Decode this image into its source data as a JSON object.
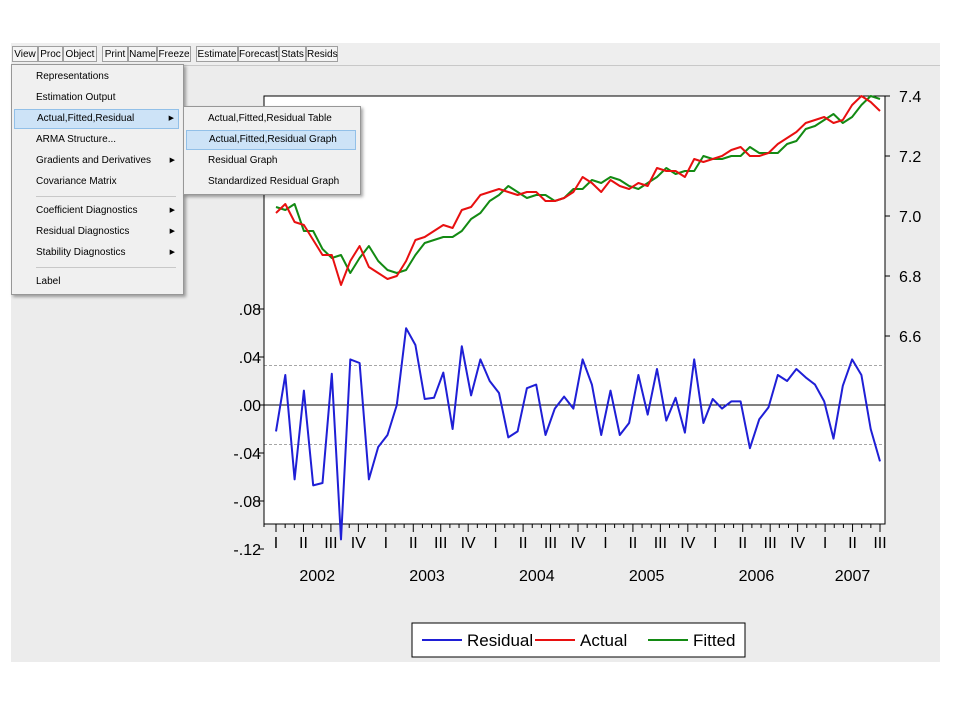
{
  "toolbar": {
    "buttons": [
      "View",
      "Proc",
      "Object",
      "Print",
      "Name",
      "Freeze",
      "Estimate",
      "Forecast",
      "Stats",
      "Resids"
    ]
  },
  "view_menu": {
    "items": [
      "Representations",
      "Estimation Output",
      "Actual,Fitted,Residual",
      "ARMA Structure...",
      "Gradients and Derivatives",
      "Covariance Matrix",
      "Coefficient Diagnostics",
      "Residual Diagnostics",
      "Stability Diagnostics",
      "Label"
    ],
    "submenu_arrow": "▶"
  },
  "submenu": {
    "items": [
      "Actual,Fitted,Residual Table",
      "Actual,Fitted,Residual Graph",
      "Residual Graph",
      "Standardized Residual Graph"
    ],
    "highlighted": "Actual,Fitted,Residual Graph"
  },
  "colors": {
    "residual": "#1f1fd6",
    "actual": "#e81010",
    "fitted": "#138a13",
    "menu_highlight": "#cde3f7"
  },
  "chart_data": {
    "type": "line",
    "x_quarter_labels": [
      "I",
      "II",
      "III",
      "IV",
      "I",
      "II",
      "III",
      "IV",
      "I",
      "II",
      "III",
      "IV",
      "I",
      "II",
      "III",
      "IV",
      "I",
      "II",
      "III",
      "IV",
      "I",
      "II",
      "III"
    ],
    "x_year_labels": [
      "2002",
      "2003",
      "2004",
      "2005",
      "2006",
      "2007"
    ],
    "left_axis": {
      "ticks": [
        ".08",
        ".04",
        ".00",
        "-.04",
        "-.08",
        "-.12"
      ],
      "ylim": [
        -0.12,
        0.08
      ]
    },
    "right_axis": {
      "ticks": [
        "7.4",
        "7.2",
        "7.0",
        "6.8",
        "6.6"
      ],
      "ylim": [
        6.6,
        7.4
      ]
    },
    "reference_lines": [
      0.033,
      0.0,
      -0.033
    ],
    "series": [
      {
        "name": "Residual",
        "axis": "left",
        "values": [
          -0.022,
          0.025,
          -0.062,
          0.012,
          -0.067,
          -0.065,
          0.026,
          -0.112,
          0.038,
          0.035,
          -0.062,
          -0.035,
          -0.025,
          0.0,
          0.064,
          0.05,
          0.005,
          0.006,
          0.027,
          -0.02,
          0.049,
          0.008,
          0.038,
          0.02,
          0.01,
          -0.027,
          -0.022,
          0.014,
          0.017,
          -0.025,
          -0.003,
          0.007,
          -0.003,
          0.038,
          0.017,
          -0.025,
          0.012,
          -0.025,
          -0.015,
          0.025,
          -0.008,
          0.03,
          -0.013,
          0.006,
          -0.023,
          0.038,
          -0.015,
          0.005,
          -0.003,
          0.003,
          0.003,
          -0.036,
          -0.012,
          -0.002,
          0.025,
          0.02,
          0.03,
          0.023,
          0.017,
          0.003,
          -0.028,
          0.016,
          0.038,
          0.025,
          -0.02,
          -0.047
        ]
      },
      {
        "name": "Actual",
        "axis": "right",
        "values": [
          7.01,
          7.04,
          6.98,
          6.97,
          6.92,
          6.87,
          6.87,
          6.77,
          6.85,
          6.9,
          6.83,
          6.81,
          6.79,
          6.8,
          6.85,
          6.92,
          6.93,
          6.95,
          6.97,
          6.96,
          7.02,
          7.03,
          7.07,
          7.08,
          7.09,
          7.08,
          7.07,
          7.08,
          7.08,
          7.05,
          7.05,
          7.06,
          7.08,
          7.13,
          7.11,
          7.08,
          7.12,
          7.1,
          7.09,
          7.11,
          7.1,
          7.16,
          7.15,
          7.15,
          7.13,
          7.19,
          7.18,
          7.19,
          7.2,
          7.22,
          7.23,
          7.2,
          7.2,
          7.21,
          7.24,
          7.26,
          7.28,
          7.31,
          7.32,
          7.33,
          7.31,
          7.32,
          7.37,
          7.4,
          7.38,
          7.35
        ]
      },
      {
        "name": "Fitted",
        "axis": "right",
        "values": [
          7.03,
          7.02,
          7.04,
          6.95,
          6.95,
          6.89,
          6.86,
          6.87,
          6.81,
          6.86,
          6.9,
          6.85,
          6.82,
          6.81,
          6.82,
          6.87,
          6.91,
          6.92,
          6.93,
          6.93,
          6.95,
          6.99,
          7.01,
          7.05,
          7.07,
          7.1,
          7.08,
          7.06,
          7.07,
          7.07,
          7.05,
          7.06,
          7.09,
          7.09,
          7.12,
          7.11,
          7.13,
          7.12,
          7.1,
          7.09,
          7.11,
          7.13,
          7.16,
          7.14,
          7.15,
          7.15,
          7.2,
          7.19,
          7.19,
          7.2,
          7.2,
          7.23,
          7.21,
          7.21,
          7.21,
          7.24,
          7.25,
          7.29,
          7.3,
          7.32,
          7.34,
          7.31,
          7.33,
          7.37,
          7.4,
          7.39
        ]
      }
    ],
    "legend": [
      "Residual",
      "Actual",
      "Fitted"
    ],
    "legend_position": "bottom"
  }
}
